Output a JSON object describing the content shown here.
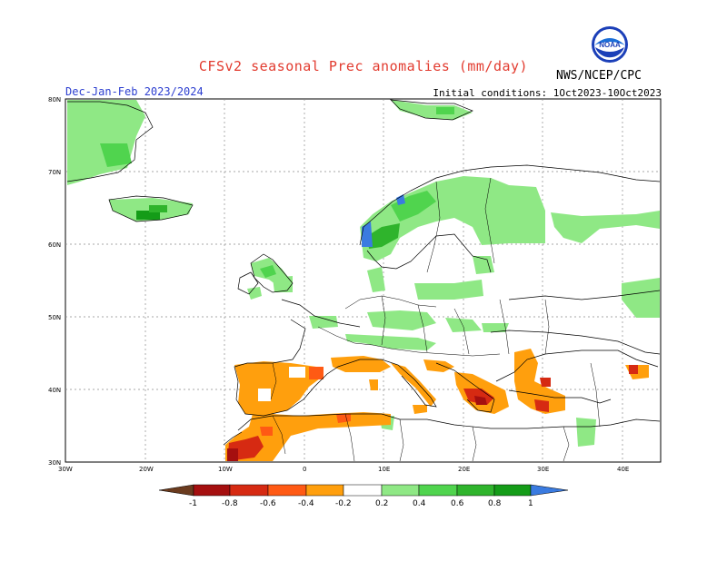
{
  "header": {
    "title": "CFSv2 seasonal Prec anomalies (mm/day)",
    "period": "Dec-Jan-Feb 2023/2024",
    "initial_conditions": "Initial conditions: 1Oct2023-10Oct2023",
    "agency": "NWS/NCEP/CPC",
    "logo_text": "NOAA"
  },
  "axes": {
    "lat_labels": [
      "80N",
      "70N",
      "60N",
      "50N",
      "40N",
      "30N"
    ],
    "lon_labels": [
      "30W",
      "20W",
      "10W",
      "0",
      "10E",
      "20E",
      "30E",
      "40E"
    ]
  },
  "colorbar": {
    "labels": [
      "-1",
      "-0.8",
      "-0.6",
      "-0.4",
      "-0.2",
      "0.2",
      "0.4",
      "0.6",
      "0.8",
      "1"
    ],
    "colors": [
      "#6b3b1e",
      "#a50f0f",
      "#d62a12",
      "#ff5a14",
      "#ff9f0d",
      "#ffffff",
      "#8fe885",
      "#50d44e",
      "#2fb42c",
      "#149c18",
      "#3a7be0"
    ]
  }
}
